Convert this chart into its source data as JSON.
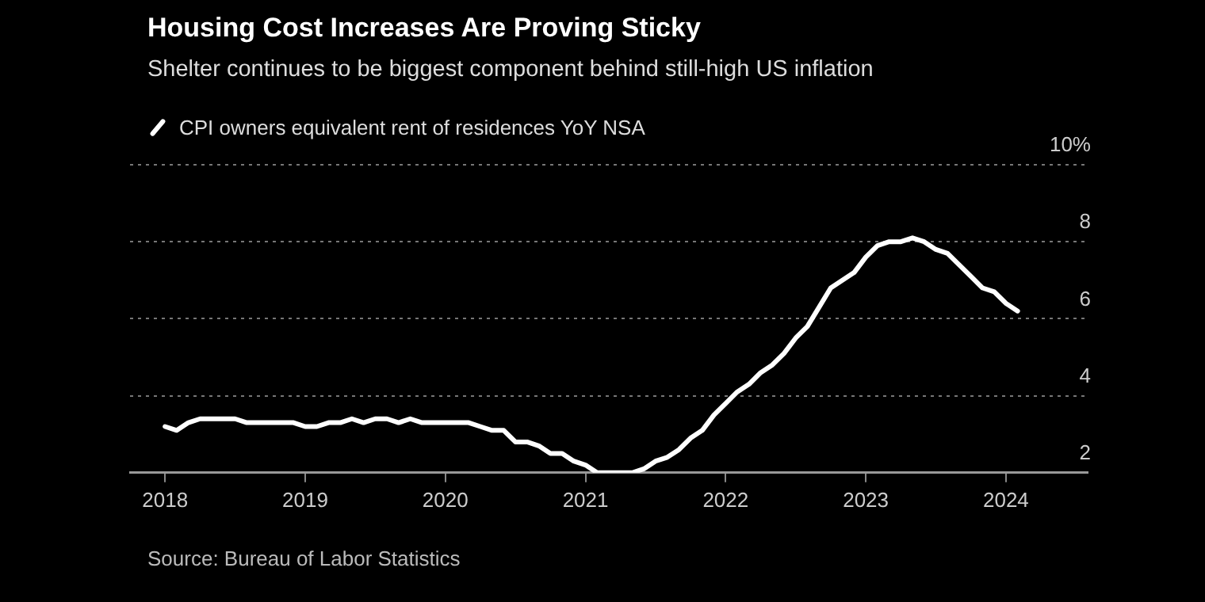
{
  "chart_data": {
    "type": "line",
    "title": "Housing Cost Increases Are Proving Sticky",
    "subtitle": "Shelter continues to be biggest component behind still-high US inflation",
    "x": [
      "2018-01",
      "2018-02",
      "2018-03",
      "2018-04",
      "2018-05",
      "2018-06",
      "2018-07",
      "2018-08",
      "2018-09",
      "2018-10",
      "2018-11",
      "2018-12",
      "2019-01",
      "2019-02",
      "2019-03",
      "2019-04",
      "2019-05",
      "2019-06",
      "2019-07",
      "2019-08",
      "2019-09",
      "2019-10",
      "2019-11",
      "2019-12",
      "2020-01",
      "2020-02",
      "2020-03",
      "2020-04",
      "2020-05",
      "2020-06",
      "2020-07",
      "2020-08",
      "2020-09",
      "2020-10",
      "2020-11",
      "2020-12",
      "2021-01",
      "2021-02",
      "2021-03",
      "2021-04",
      "2021-05",
      "2021-06",
      "2021-07",
      "2021-08",
      "2021-09",
      "2021-10",
      "2021-11",
      "2021-12",
      "2022-01",
      "2022-02",
      "2022-03",
      "2022-04",
      "2022-05",
      "2022-06",
      "2022-07",
      "2022-08",
      "2022-09",
      "2022-10",
      "2022-11",
      "2022-12",
      "2023-01",
      "2023-02",
      "2023-03",
      "2023-04",
      "2023-05",
      "2023-06",
      "2023-07",
      "2023-08",
      "2023-09",
      "2023-10",
      "2023-11",
      "2023-12",
      "2024-01",
      "2024-02"
    ],
    "series": [
      {
        "name": "CPI owners equivalent rent of residences YoY NSA",
        "color": "#ffffff",
        "values": [
          3.2,
          3.1,
          3.3,
          3.4,
          3.4,
          3.4,
          3.4,
          3.3,
          3.3,
          3.3,
          3.3,
          3.3,
          3.2,
          3.2,
          3.3,
          3.3,
          3.4,
          3.3,
          3.4,
          3.4,
          3.3,
          3.4,
          3.3,
          3.3,
          3.3,
          3.3,
          3.3,
          3.2,
          3.1,
          3.1,
          2.8,
          2.8,
          2.7,
          2.5,
          2.5,
          2.3,
          2.2,
          2.0,
          2.0,
          2.0,
          2.0,
          2.1,
          2.3,
          2.4,
          2.6,
          2.9,
          3.1,
          3.5,
          3.8,
          4.1,
          4.3,
          4.6,
          4.8,
          5.1,
          5.5,
          5.8,
          6.3,
          6.8,
          7.0,
          7.2,
          7.6,
          7.9,
          8.0,
          8.0,
          8.1,
          8.0,
          7.8,
          7.7,
          7.4,
          7.1,
          6.8,
          6.7,
          6.4,
          6.2
        ]
      }
    ],
    "xlim": [
      "2017-10",
      "2024-08"
    ],
    "xticks": [
      {
        "value": "2018",
        "label": "2018"
      },
      {
        "value": "2019",
        "label": "2019"
      },
      {
        "value": "2020",
        "label": "2020"
      },
      {
        "value": "2021",
        "label": "2021"
      },
      {
        "value": "2022",
        "label": "2022"
      },
      {
        "value": "2023",
        "label": "2023"
      },
      {
        "value": "2024",
        "label": "2024"
      }
    ],
    "ylim": [
      2,
      10
    ],
    "yticks": [
      2,
      4,
      6,
      8,
      {
        "value": 10,
        "label": "10%"
      }
    ],
    "grid": "y",
    "legend": "top left",
    "marker": "none",
    "line_style": "solid",
    "annotations": [
      "Source: Bureau of Labor Statistics"
    ]
  }
}
